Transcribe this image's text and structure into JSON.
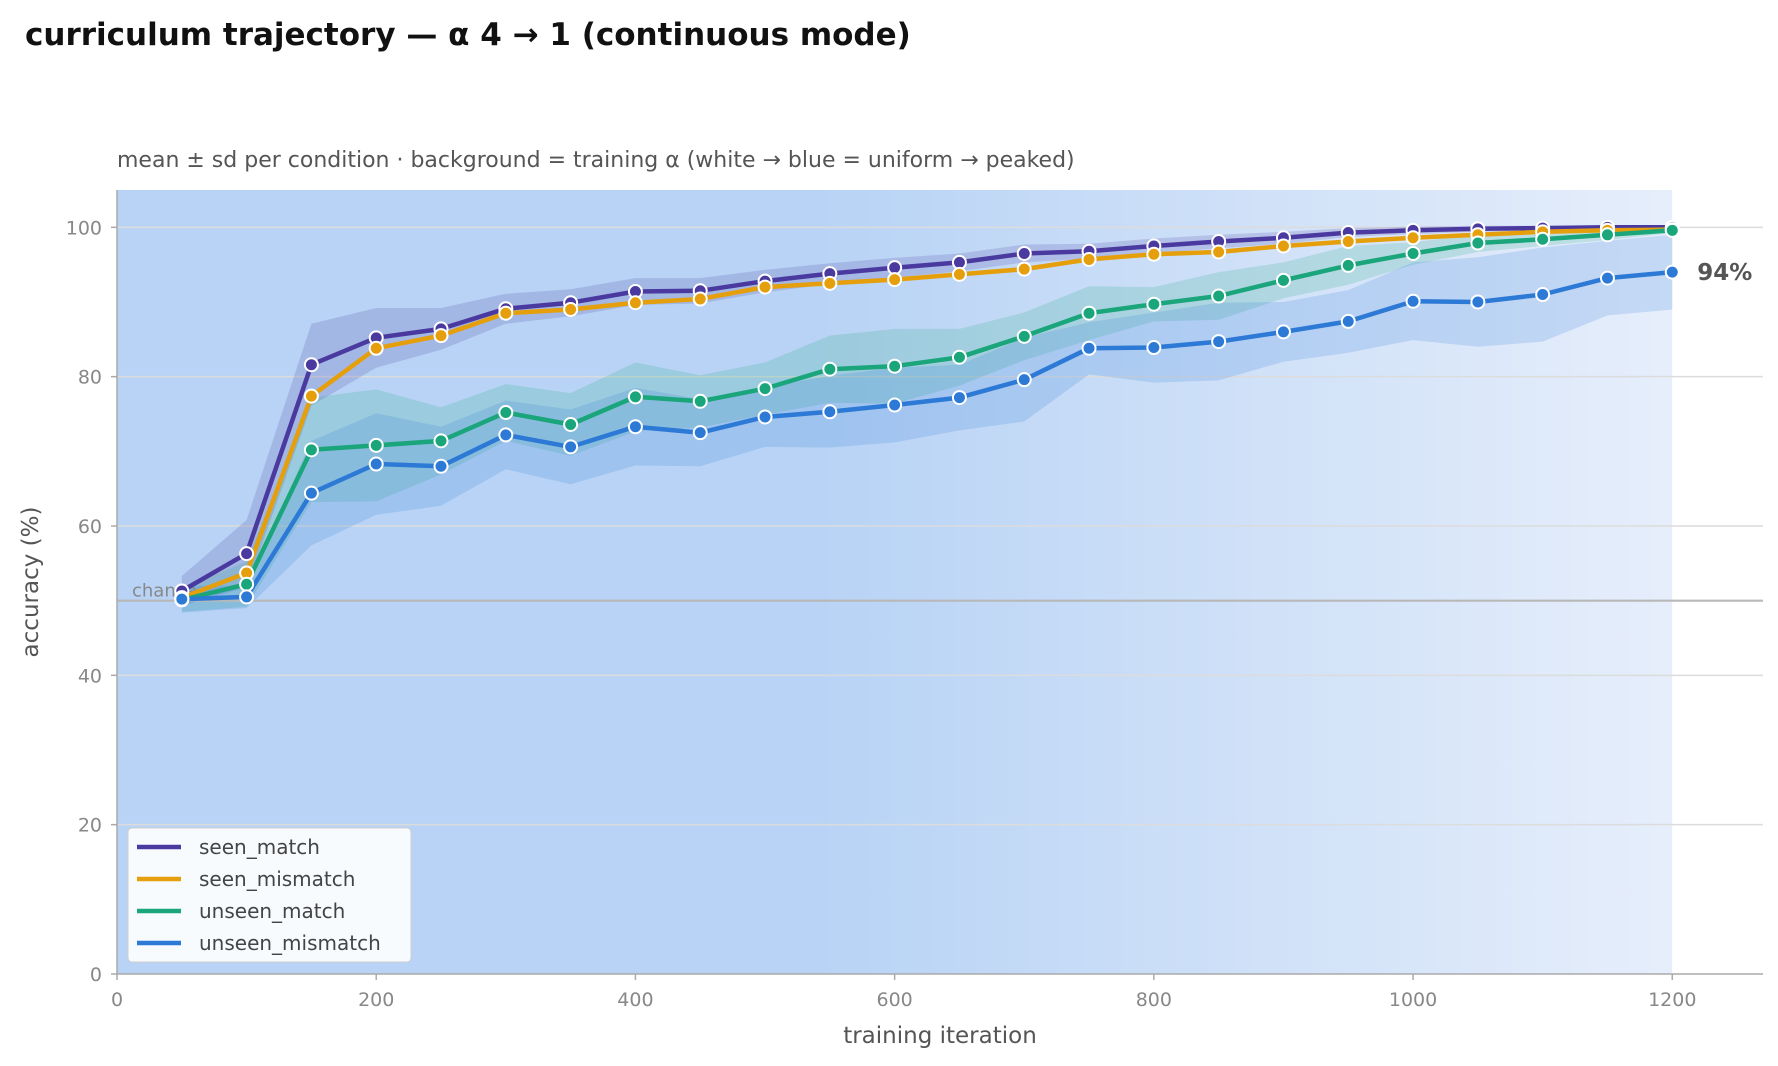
{
  "chart_data": {
    "type": "line",
    "title": "curriculum trajectory — α 4 → 1 (continuous mode)",
    "subtitle": "mean ± sd per condition · background = training α (white → blue = uniform → peaked)",
    "xlabel": "training iteration",
    "ylabel": "accuracy (%)",
    "xlim": [
      0,
      1270
    ],
    "ylim": [
      0,
      105
    ],
    "xticks": [
      0,
      200,
      400,
      600,
      800,
      1000,
      1200
    ],
    "yticks": [
      0,
      20,
      40,
      60,
      80,
      100
    ],
    "grid": "horizontal",
    "legend_position": "lower-left",
    "chance_level": 50,
    "chance_label": "chance",
    "end_annotation": "94%",
    "background_alpha_colors": [
      "#b8d3f5",
      "#e6eefb"
    ],
    "x": [
      50,
      100,
      150,
      200,
      250,
      300,
      350,
      400,
      450,
      500,
      550,
      600,
      650,
      700,
      750,
      800,
      850,
      900,
      950,
      1000,
      1050,
      1100,
      1150,
      1200
    ],
    "series": [
      {
        "name": "seen_match",
        "color": "#4a3aa0",
        "values": [
          51.3,
          56.3,
          81.6,
          85.2,
          86.4,
          89.1,
          89.9,
          91.4,
          91.5,
          92.8,
          93.8,
          94.6,
          95.3,
          96.5,
          96.8,
          97.5,
          98.1,
          98.6,
          99.3,
          99.6,
          99.8,
          99.9,
          100.0,
          100.0
        ],
        "sd": [
          2.0,
          4.5,
          5.5,
          4.0,
          2.8,
          2.0,
          1.8,
          1.8,
          1.7,
          1.5,
          1.4,
          1.3,
          1.2,
          1.2,
          1.0,
          1.0,
          0.9,
          0.8,
          0.6,
          0.5,
          0.4,
          0.3,
          0.2,
          0.2
        ]
      },
      {
        "name": "seen_mismatch",
        "color": "#e59f0d",
        "values": [
          50.4,
          53.7,
          77.4,
          83.8,
          85.5,
          88.5,
          89.0,
          89.9,
          90.4,
          92.0,
          92.5,
          93.0,
          93.7,
          94.4,
          95.7,
          96.4,
          96.7,
          97.5,
          98.1,
          98.6,
          99.0,
          99.4,
          99.6,
          99.7
        ]
      },
      {
        "name": "unseen_match",
        "color": "#1aa57a",
        "values": [
          50.1,
          52.2,
          70.2,
          70.8,
          71.4,
          75.2,
          73.6,
          77.3,
          76.7,
          78.4,
          81.0,
          81.4,
          82.6,
          85.4,
          88.5,
          89.7,
          90.8,
          92.9,
          94.9,
          96.5,
          97.9,
          98.4,
          99.0,
          99.6
        ],
        "sd": [
          1.6,
          3.0,
          7.0,
          7.5,
          4.5,
          3.8,
          4.2,
          4.6,
          3.5,
          3.5,
          4.5,
          5.0,
          3.8,
          3.2,
          3.6,
          2.3,
          3.2,
          2.4,
          2.6,
          1.5,
          1.2,
          0.9,
          0.7,
          0.4
        ]
      },
      {
        "name": "unseen_mismatch",
        "color": "#2d79d6",
        "values": [
          50.2,
          50.5,
          64.4,
          68.3,
          68.0,
          72.2,
          70.6,
          73.3,
          72.5,
          74.6,
          75.3,
          76.2,
          77.2,
          79.6,
          83.8,
          83.9,
          84.7,
          86.0,
          87.4,
          90.1,
          90.0,
          91.0,
          93.2,
          94.0
        ],
        "sd": [
          1.8,
          1.5,
          7.0,
          6.8,
          5.3,
          4.6,
          5.0,
          5.2,
          4.5,
          4.0,
          4.8,
          5.0,
          4.4,
          5.6,
          3.5,
          4.7,
          5.2,
          4.0,
          4.2,
          5.2,
          6.0,
          6.3,
          5.0,
          5.0
        ]
      }
    ]
  }
}
